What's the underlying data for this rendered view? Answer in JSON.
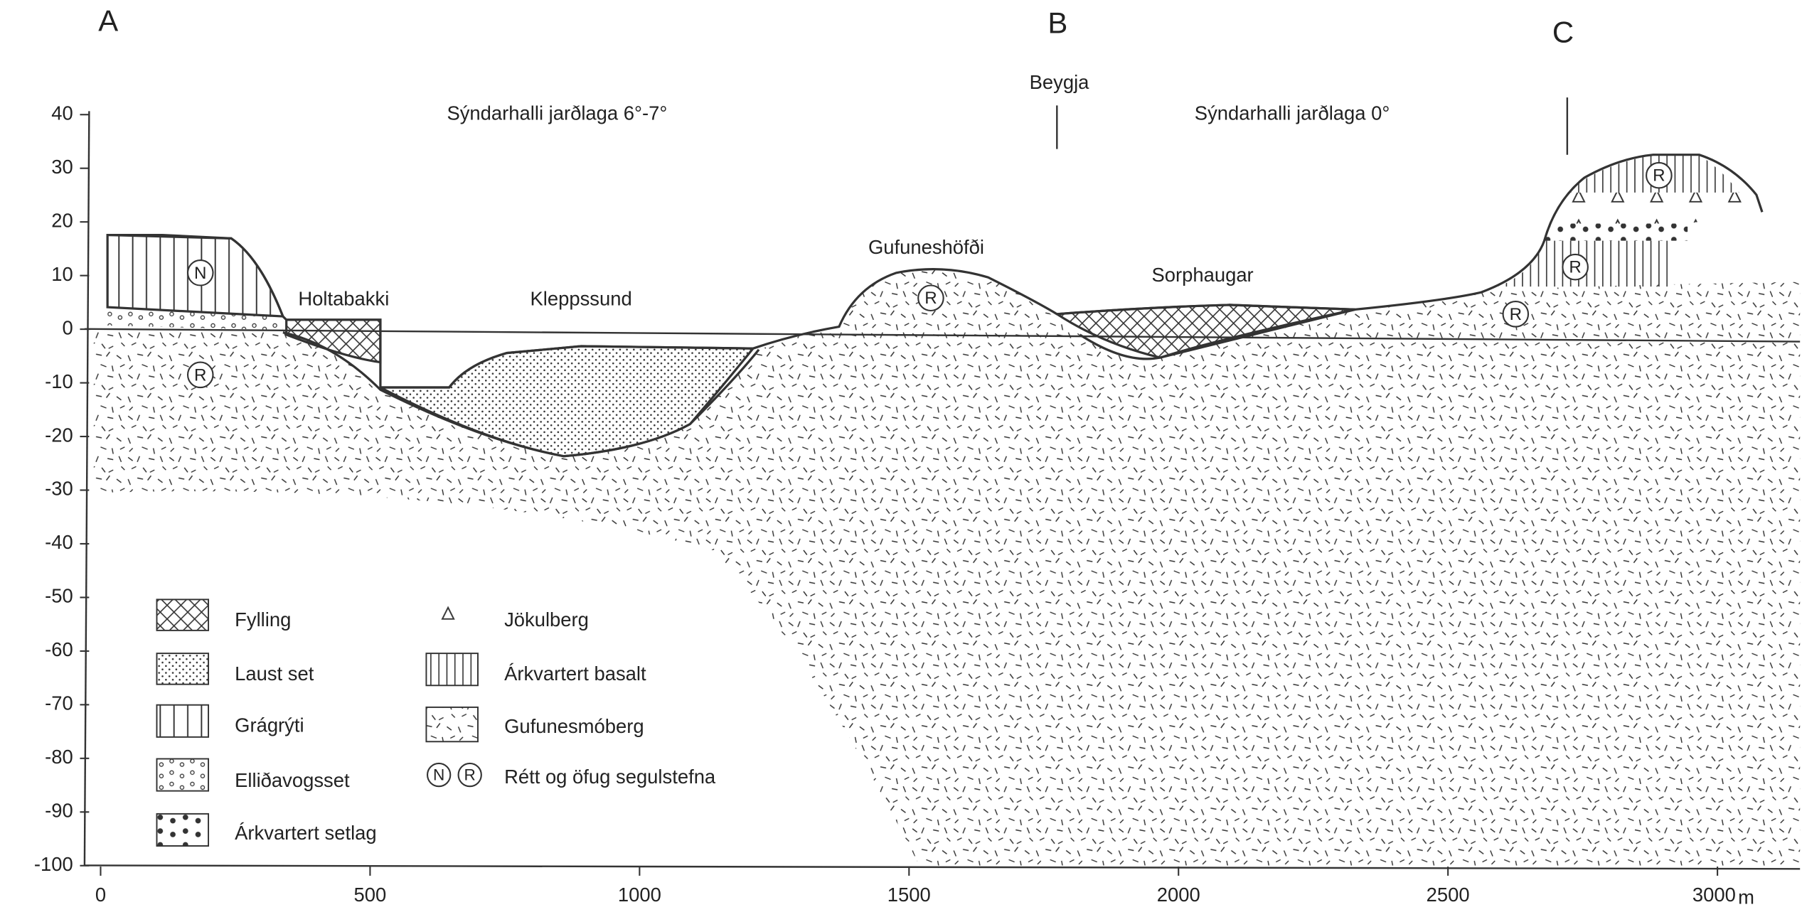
{
  "points": [
    "A",
    "B",
    "C"
  ],
  "annotations": {
    "dip_left": "Sýndarhalli jarðlaga 6°-7°",
    "bend": "Beygja",
    "dip_right": "Sýndarhalli jarðlaga 0°"
  },
  "places": [
    "Holtabakki",
    "Kleppssund",
    "Gufuneshöfði",
    "Sorphaugar"
  ],
  "polarity_marks": [
    "N",
    "R",
    "R",
    "R",
    "R",
    "R"
  ],
  "y_axis": {
    "ticks": [
      "40",
      "30",
      "20",
      "10",
      "0",
      "-10",
      "-20",
      "-30",
      "-40",
      "-50",
      "-60",
      "-70",
      "-80",
      "-90",
      "-100"
    ]
  },
  "x_axis": {
    "ticks": [
      "0",
      "500",
      "1000",
      "1500",
      "2000",
      "2500",
      "3000"
    ],
    "unit": "m"
  },
  "legend": {
    "items": [
      "Fylling",
      "Laust set",
      "Grágrýti",
      "Elliðavogsset",
      "Árkvartert setlag",
      "Jökulberg",
      "Árkvartert basalt",
      "Gufunesmóberg",
      "Rétt og öfug segulstefna"
    ],
    "symbols": [
      "N",
      "R"
    ]
  }
}
